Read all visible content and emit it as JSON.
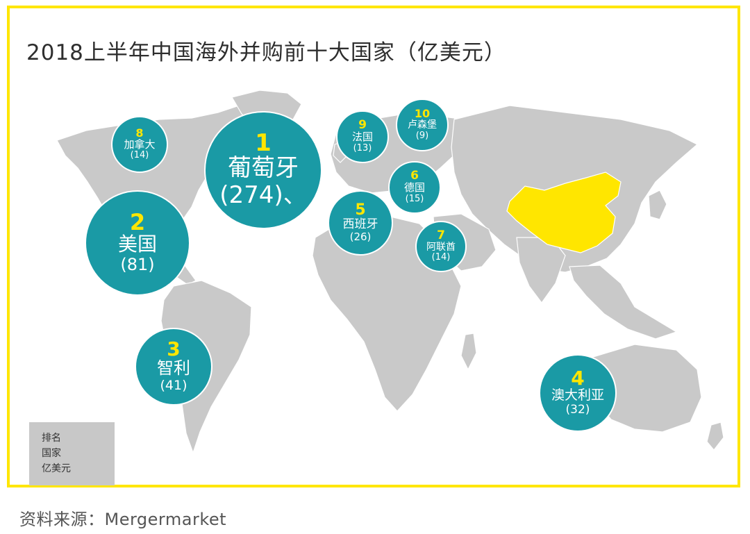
{
  "title": "2018上半年中国海外并购前十大国家（亿美元）",
  "colors": {
    "frame": "#ffe600",
    "bubble": "#1a9aa5",
    "rank": "#ffe600",
    "land": "#c9c9c9",
    "china": "#ffe600"
  },
  "countries": [
    {
      "rank": "1",
      "name": "葡萄牙",
      "value": "(274)、",
      "amount": 274
    },
    {
      "rank": "2",
      "name": "美国",
      "value": "(81)",
      "amount": 81
    },
    {
      "rank": "3",
      "name": "智利",
      "value": "(41)",
      "amount": 41
    },
    {
      "rank": "4",
      "name": "澳大利亚",
      "value": "(32)",
      "amount": 32
    },
    {
      "rank": "5",
      "name": "西班牙",
      "value": "(26)",
      "amount": 26
    },
    {
      "rank": "6",
      "name": "德国",
      "value": "(15)",
      "amount": 15
    },
    {
      "rank": "7",
      "name": "阿联酋",
      "value": "(14)",
      "amount": 14
    },
    {
      "rank": "8",
      "name": "加拿大",
      "value": "(14)",
      "amount": 14
    },
    {
      "rank": "9",
      "name": "法国",
      "value": "(13)",
      "amount": 13
    },
    {
      "rank": "10",
      "name": "卢森堡",
      "value": "(9)",
      "amount": 9
    }
  ],
  "legend": {
    "line1": "排名",
    "line2": "国家",
    "line3": "亿美元"
  },
  "source": "资料来源：Mergermarket"
}
